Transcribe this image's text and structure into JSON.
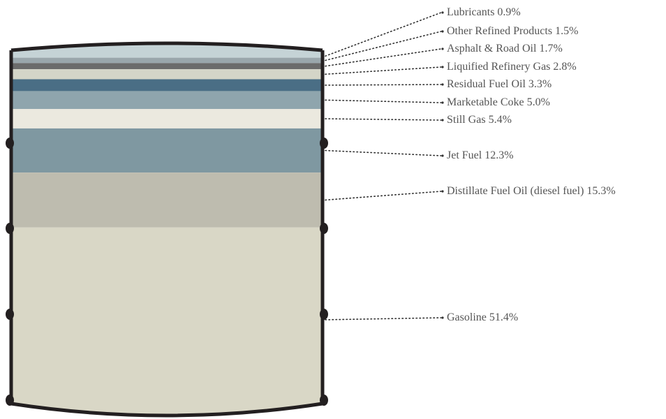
{
  "chart_data": {
    "type": "barrel",
    "categories": [
      "Lubricants",
      "Other Refined Products",
      "Asphalt & Road Oil",
      "Liquified Refinery Gas",
      "Residual Fuel Oil",
      "Marketable Coke",
      "Still Gas",
      "Jet Fuel",
      "Distillate Fuel Oil (diesel fuel)",
      "Gasoline"
    ],
    "values": [
      0.9,
      1.5,
      1.7,
      2.8,
      3.3,
      5.0,
      5.4,
      12.3,
      15.3,
      51.4
    ],
    "value_labels": [
      "0.9%",
      "1.5%",
      "1.7%",
      "2.8%",
      "3.3%",
      "5.0%",
      "5.4%",
      "12.3%",
      "15.3%",
      "51.4%"
    ],
    "colors": [
      "#c5d3d6",
      "#9aa6ab",
      "#6b6b6b",
      "#d4d5c8",
      "#4a6e85",
      "#8fa5ad",
      "#ebe9df",
      "#7f98a1",
      "#bebcaf",
      "#d9d7c6"
    ]
  }
}
